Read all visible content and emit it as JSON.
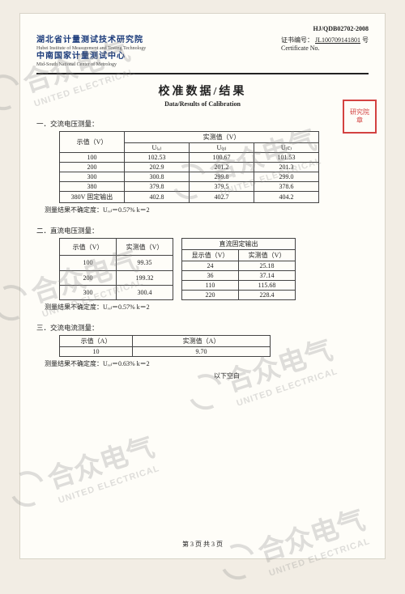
{
  "doc_number": "HJ/QDB02702-2008",
  "institute": {
    "cn1": "湖北省计量测试技术研究院",
    "en1": "Hubei Institute of Measurement and Testing Technology",
    "cn2": "中南国家计量测试中心",
    "en2": "Mid-South National Center of Metrology"
  },
  "certificate": {
    "label_cn": "证书编号：",
    "number": "JL100709141801",
    "suffix": " 号",
    "label_en": "Certificate No."
  },
  "title": {
    "cn": "校准数据/结果",
    "en": "Data/Results of Calibration"
  },
  "stamp": {
    "line1": "研究院",
    "line2": "章"
  },
  "watermark": {
    "cn": "合众电气",
    "en": "UNITED ELECTRICAL"
  },
  "section1": {
    "heading": "一．交流电压测量：",
    "col_nom": "示值（V）",
    "col_meas": "实测值（V）",
    "sub": {
      "a": "U₍ₐ₎",
      "b": "U₍ᵦ₎",
      "c": "U₍c₎"
    },
    "rows": [
      {
        "nom": "100",
        "a": "102.53",
        "b": "100.67",
        "c": "101.53"
      },
      {
        "nom": "200",
        "a": "202.9",
        "b": "201.2",
        "c": "201.3"
      },
      {
        "nom": "300",
        "a": "300.8",
        "b": "299.8",
        "c": "299.0"
      },
      {
        "nom": "380",
        "a": "379.8",
        "b": "379.5",
        "c": "378.6"
      },
      {
        "nom": "380V 固定输出",
        "a": "402.8",
        "b": "402.7",
        "c": "404.2"
      }
    ],
    "uncert": "测量结果不确定度：Uᵣₑₗ＝0.57%  k＝2"
  },
  "section2": {
    "heading": "二．直流电压测量：",
    "left": {
      "col_nom": "示值（V）",
      "col_meas": "实测值（V）",
      "rows": [
        {
          "nom": "100",
          "v": "99.35"
        },
        {
          "nom": "200",
          "v": "199.32"
        },
        {
          "nom": "300",
          "v": "300.4"
        }
      ]
    },
    "right": {
      "header": "直流固定输出",
      "col_disp": "显示值（V）",
      "col_meas": "实测值（V）",
      "rows": [
        {
          "d": "24",
          "v": "25.18"
        },
        {
          "d": "36",
          "v": "37.14"
        },
        {
          "d": "110",
          "v": "115.68"
        },
        {
          "d": "220",
          "v": "228.4"
        }
      ]
    },
    "uncert": "测量结果不确定度：Uᵣₑₗ＝0.57%  k＝2"
  },
  "section3": {
    "heading": "三．交流电流测量：",
    "col_nom": "示值（A）",
    "col_meas": "实测值（A）",
    "rows": [
      {
        "nom": "10",
        "v": "9.70"
      }
    ],
    "uncert": "测量结果不确定度：Uᵣₑₗ＝0.63%  k＝2",
    "blank": "以下空白"
  },
  "footer": "第 3 页 共 3 页",
  "colors": {
    "brand": "#1a3a7a",
    "stamp": "#c22",
    "wm": "rgba(140,140,140,0.28)",
    "bg": "#f2ede4",
    "paper": "#fefdf8"
  }
}
